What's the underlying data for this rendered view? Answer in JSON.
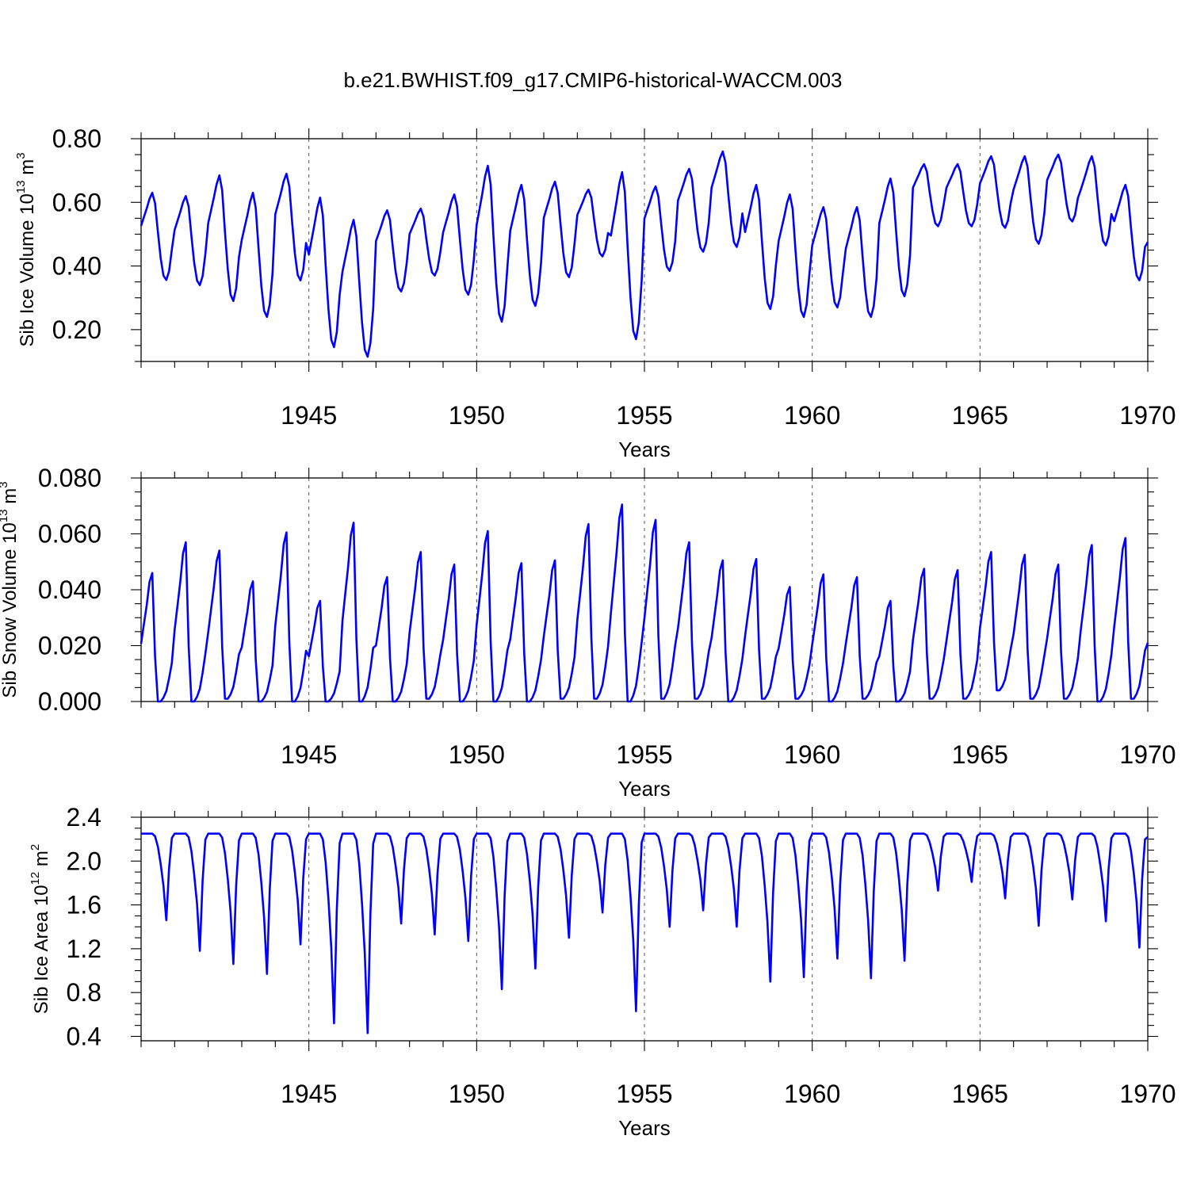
{
  "chart_data": [
    {
      "type": "line",
      "title": "b.e21.BWHIST.f09_g17.CMIP6-historical-WACCM.003",
      "xlabel": "Years",
      "ylabel": {
        "text": "Sib Ice Volume 10",
        "exp": "13",
        "unit": " m",
        "unit_exp": "3"
      },
      "xlim": [
        1940.0,
        1970.0
      ],
      "ylim": [
        0.1,
        0.8
      ],
      "x_ticks": [
        1945,
        1950,
        1955,
        1960,
        1965,
        1970
      ],
      "y_ticks": [
        0.2,
        0.4,
        0.6,
        0.8
      ],
      "y_tick_labels": [
        "0.20",
        "0.40",
        "0.60",
        "0.80"
      ],
      "grid": "vertical dashed at major x ticks",
      "series": [
        {
          "name": "Sib Ice Volume",
          "color": "#0000ff"
        }
      ],
      "yearly": [
        [
          1940,
          0.63,
          0.356
        ],
        [
          1941,
          0.62,
          0.34
        ],
        [
          1942,
          0.685,
          0.29
        ],
        [
          1943,
          0.63,
          0.24
        ],
        [
          1944,
          0.69,
          0.355
        ],
        [
          1945,
          0.615,
          0.145
        ],
        [
          1946,
          0.545,
          0.115
        ],
        [
          1947,
          0.575,
          0.32
        ],
        [
          1948,
          0.58,
          0.37
        ],
        [
          1949,
          0.625,
          0.31
        ],
        [
          1950,
          0.715,
          0.225
        ],
        [
          1951,
          0.655,
          0.275
        ],
        [
          1952,
          0.665,
          0.365
        ],
        [
          1953,
          0.64,
          0.43
        ],
        [
          1954,
          0.695,
          0.17
        ],
        [
          1955,
          0.65,
          0.385
        ],
        [
          1956,
          0.705,
          0.445
        ],
        [
          1957,
          0.76,
          0.46
        ],
        [
          1958,
          0.655,
          0.265
        ],
        [
          1959,
          0.625,
          0.24
        ],
        [
          1960,
          0.585,
          0.27
        ],
        [
          1961,
          0.585,
          0.24
        ],
        [
          1962,
          0.675,
          0.305
        ],
        [
          1963,
          0.72,
          0.525
        ],
        [
          1964,
          0.72,
          0.525
        ],
        [
          1965,
          0.745,
          0.52
        ],
        [
          1966,
          0.745,
          0.47
        ],
        [
          1967,
          0.75,
          0.54
        ],
        [
          1968,
          0.745,
          0.465
        ],
        [
          1969,
          0.655,
          0.355
        ]
      ],
      "end_value": 0.475
    },
    {
      "type": "line",
      "xlabel": "Years",
      "ylabel": {
        "text": "Sib Snow Volume 10",
        "exp": "13",
        "unit": " m",
        "unit_exp": "3"
      },
      "xlim": [
        1940.0,
        1970.0
      ],
      "ylim": [
        0.0,
        0.08
      ],
      "x_ticks": [
        1945,
        1950,
        1955,
        1960,
        1965,
        1970
      ],
      "y_ticks": [
        0.0,
        0.02,
        0.04,
        0.06,
        0.08
      ],
      "y_tick_labels": [
        "0.000",
        "0.020",
        "0.040",
        "0.060",
        "0.080"
      ],
      "grid": "vertical dashed at major x ticks",
      "series": [
        {
          "name": "Sib Snow Volume",
          "color": "#0000ff"
        }
      ],
      "yearly": [
        [
          1940,
          0.046,
          0.0
        ],
        [
          1941,
          0.057,
          0.0
        ],
        [
          1942,
          0.054,
          0.001
        ],
        [
          1943,
          0.043,
          0.0
        ],
        [
          1944,
          0.0605,
          0.0
        ],
        [
          1945,
          0.036,
          0.0
        ],
        [
          1946,
          0.064,
          0.0
        ],
        [
          1947,
          0.0445,
          0.0
        ],
        [
          1948,
          0.0535,
          0.001
        ],
        [
          1949,
          0.049,
          0.0
        ],
        [
          1950,
          0.061,
          0.0
        ],
        [
          1951,
          0.0495,
          0.0
        ],
        [
          1952,
          0.0505,
          0.001
        ],
        [
          1953,
          0.0635,
          0.001
        ],
        [
          1954,
          0.0705,
          0.0
        ],
        [
          1955,
          0.065,
          0.001
        ],
        [
          1956,
          0.057,
          0.001
        ],
        [
          1957,
          0.0505,
          0.0
        ],
        [
          1958,
          0.051,
          0.001
        ],
        [
          1959,
          0.041,
          0.001
        ],
        [
          1960,
          0.0455,
          0.0
        ],
        [
          1961,
          0.0445,
          0.001
        ],
        [
          1962,
          0.036,
          0.0
        ],
        [
          1963,
          0.0475,
          0.001
        ],
        [
          1964,
          0.047,
          0.001
        ],
        [
          1965,
          0.0535,
          0.004
        ],
        [
          1966,
          0.0525,
          0.001
        ],
        [
          1967,
          0.049,
          0.001
        ],
        [
          1968,
          0.056,
          0.0
        ],
        [
          1969,
          0.0585,
          0.001
        ]
      ],
      "end_value": 0.021
    },
    {
      "type": "line",
      "xlabel": "Years",
      "ylabel": {
        "text": "Sib Ice Area 10",
        "exp": "12",
        "unit": " m",
        "unit_exp": "2"
      },
      "xlim": [
        1940.0,
        1970.0
      ],
      "ylim": [
        0.36,
        2.4
      ],
      "x_ticks": [
        1945,
        1950,
        1955,
        1960,
        1965,
        1970
      ],
      "y_ticks": [
        0.4,
        0.8,
        1.2,
        1.6,
        2.0,
        2.4
      ],
      "y_tick_labels": [
        "0.4",
        "0.8",
        "1.2",
        "1.6",
        "2.0",
        "2.4"
      ],
      "grid": "vertical dashed at major x ticks",
      "series": [
        {
          "name": "Sib Ice Area",
          "color": "#0000ff"
        }
      ],
      "yearly": [
        [
          1940,
          2.25,
          1.46
        ],
        [
          1941,
          2.25,
          1.18
        ],
        [
          1942,
          2.25,
          1.06
        ],
        [
          1943,
          2.25,
          0.97
        ],
        [
          1944,
          2.25,
          1.24
        ],
        [
          1945,
          2.25,
          0.52
        ],
        [
          1946,
          2.25,
          0.43
        ],
        [
          1947,
          2.25,
          1.43
        ],
        [
          1948,
          2.25,
          1.33
        ],
        [
          1949,
          2.25,
          1.27
        ],
        [
          1950,
          2.25,
          0.83
        ],
        [
          1951,
          2.25,
          1.02
        ],
        [
          1952,
          2.25,
          1.3
        ],
        [
          1953,
          2.25,
          1.53
        ],
        [
          1954,
          2.25,
          0.63
        ],
        [
          1955,
          2.25,
          1.4
        ],
        [
          1956,
          2.25,
          1.55
        ],
        [
          1957,
          2.25,
          1.4
        ],
        [
          1958,
          2.25,
          0.9
        ],
        [
          1959,
          2.25,
          0.94
        ],
        [
          1960,
          2.25,
          1.11
        ],
        [
          1961,
          2.25,
          0.93
        ],
        [
          1962,
          2.25,
          1.09
        ],
        [
          1963,
          2.25,
          1.73
        ],
        [
          1964,
          2.25,
          1.81
        ],
        [
          1965,
          2.25,
          1.66
        ],
        [
          1966,
          2.25,
          1.41
        ],
        [
          1967,
          2.25,
          1.65
        ],
        [
          1968,
          2.25,
          1.45
        ],
        [
          1969,
          2.25,
          1.21
        ]
      ],
      "end_value": 2.22
    }
  ]
}
